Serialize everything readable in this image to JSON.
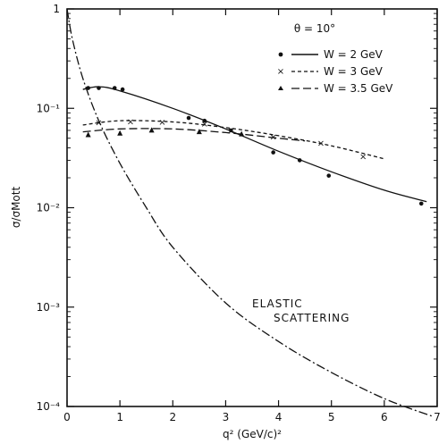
{
  "chart_data": {
    "type": "scatter",
    "x_axis": {
      "label": "q² (GeV/c)²",
      "range": [
        0,
        7
      ],
      "ticks": [
        0,
        1,
        2,
        3,
        4,
        5,
        6,
        7
      ],
      "tick_labels": [
        "0",
        "1",
        "2",
        "3",
        "4",
        "5",
        "6",
        "7"
      ]
    },
    "y_axis": {
      "label": "σ/σMott",
      "scale": "log",
      "range": [
        0.0001,
        1
      ],
      "ticks": [
        0.0001,
        0.001,
        0.01,
        0.1,
        1
      ],
      "tick_labels": [
        "10⁻⁴",
        "10⁻³",
        "10⁻²",
        "10⁻¹",
        "1"
      ]
    },
    "angle_label": "θ = 10°",
    "grid": false,
    "legend_position": "top-right",
    "series": [
      {
        "name": "W = 2 GeV",
        "marker": "dot",
        "line": "solid",
        "points": [
          {
            "x": 0.4,
            "y": 0.16
          },
          {
            "x": 0.6,
            "y": 0.16
          },
          {
            "x": 0.9,
            "y": 0.16
          },
          {
            "x": 1.05,
            "y": 0.155
          },
          {
            "x": 2.3,
            "y": 0.08
          },
          {
            "x": 2.6,
            "y": 0.075
          },
          {
            "x": 3.1,
            "y": 0.06
          },
          {
            "x": 3.9,
            "y": 0.036
          },
          {
            "x": 4.4,
            "y": 0.03
          },
          {
            "x": 4.95,
            "y": 0.021
          },
          {
            "x": 6.7,
            "y": 0.011
          }
        ],
        "curve": [
          {
            "x": 0.3,
            "y": 0.155
          },
          {
            "x": 0.6,
            "y": 0.165
          },
          {
            "x": 1.0,
            "y": 0.15
          },
          {
            "x": 2.0,
            "y": 0.1
          },
          {
            "x": 3.0,
            "y": 0.062
          },
          {
            "x": 4.0,
            "y": 0.037
          },
          {
            "x": 5.0,
            "y": 0.023
          },
          {
            "x": 6.0,
            "y": 0.015
          },
          {
            "x": 6.8,
            "y": 0.0115
          }
        ]
      },
      {
        "name": "W = 3 GeV",
        "marker": "x",
        "line": "dashed",
        "points": [
          {
            "x": 0.6,
            "y": 0.072
          },
          {
            "x": 1.2,
            "y": 0.074
          },
          {
            "x": 1.8,
            "y": 0.073
          },
          {
            "x": 2.6,
            "y": 0.07
          },
          {
            "x": 3.1,
            "y": 0.06
          },
          {
            "x": 3.9,
            "y": 0.052
          },
          {
            "x": 4.8,
            "y": 0.045
          },
          {
            "x": 5.6,
            "y": 0.033
          }
        ],
        "curve": [
          {
            "x": 0.3,
            "y": 0.068
          },
          {
            "x": 1.0,
            "y": 0.075
          },
          {
            "x": 2.0,
            "y": 0.073
          },
          {
            "x": 3.0,
            "y": 0.064
          },
          {
            "x": 4.0,
            "y": 0.053
          },
          {
            "x": 5.0,
            "y": 0.042
          },
          {
            "x": 6.0,
            "y": 0.031
          }
        ]
      },
      {
        "name": "W = 3.5 GeV",
        "marker": "triangle",
        "line": "long-dash",
        "points": [
          {
            "x": 0.4,
            "y": 0.054
          },
          {
            "x": 1.0,
            "y": 0.056
          },
          {
            "x": 1.6,
            "y": 0.06
          },
          {
            "x": 2.5,
            "y": 0.058
          },
          {
            "x": 3.3,
            "y": 0.055
          }
        ],
        "curve": [
          {
            "x": 0.3,
            "y": 0.058
          },
          {
            "x": 1.0,
            "y": 0.062
          },
          {
            "x": 2.0,
            "y": 0.062
          },
          {
            "x": 3.0,
            "y": 0.057
          },
          {
            "x": 4.0,
            "y": 0.05
          },
          {
            "x": 4.5,
            "y": 0.047
          }
        ]
      },
      {
        "name": "ELASTIC SCATTERING",
        "marker": "none",
        "line": "dash-dot",
        "curve": [
          {
            "x": 0.0,
            "y": 1.0
          },
          {
            "x": 0.1,
            "y": 0.5
          },
          {
            "x": 0.3,
            "y": 0.2
          },
          {
            "x": 0.6,
            "y": 0.075
          },
          {
            "x": 1.0,
            "y": 0.028
          },
          {
            "x": 1.5,
            "y": 0.01
          },
          {
            "x": 2.0,
            "y": 0.004
          },
          {
            "x": 3.0,
            "y": 0.0011
          },
          {
            "x": 4.0,
            "y": 0.00045
          },
          {
            "x": 5.0,
            "y": 0.00022
          },
          {
            "x": 6.0,
            "y": 0.00012
          },
          {
            "x": 6.9,
            "y": 8e-05
          }
        ]
      }
    ],
    "annotations": [
      "ELASTIC",
      "SCATTERING"
    ]
  }
}
